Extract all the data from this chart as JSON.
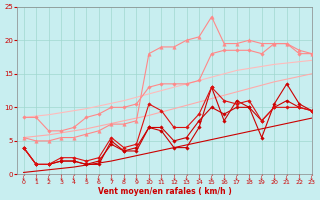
{
  "x": [
    0,
    1,
    2,
    3,
    4,
    5,
    6,
    7,
    8,
    9,
    10,
    11,
    12,
    13,
    14,
    15,
    16,
    17,
    18,
    19,
    20,
    21,
    22,
    23
  ],
  "series": [
    {
      "label": "line_smooth_lower_dark",
      "color": "#cc0000",
      "lw": 0.8,
      "marker": null,
      "ms": 0,
      "y": [
        0.3,
        0.5,
        0.7,
        0.9,
        1.1,
        1.4,
        1.7,
        2.0,
        2.4,
        2.8,
        3.2,
        3.6,
        4.0,
        4.4,
        4.8,
        5.2,
        5.6,
        6.0,
        6.4,
        6.8,
        7.2,
        7.6,
        8.0,
        8.4
      ]
    },
    {
      "label": "line_smooth_lower_pink",
      "color": "#ffaaaa",
      "lw": 0.8,
      "marker": null,
      "ms": 0,
      "y": [
        5.5,
        5.7,
        5.9,
        6.2,
        6.5,
        6.8,
        7.2,
        7.6,
        8.0,
        8.4,
        8.8,
        9.3,
        9.8,
        10.3,
        10.8,
        11.3,
        11.8,
        12.3,
        12.8,
        13.3,
        13.8,
        14.2,
        14.6,
        15.0
      ]
    },
    {
      "label": "line_smooth_upper_pink",
      "color": "#ffbbbb",
      "lw": 0.8,
      "marker": null,
      "ms": 0,
      "y": [
        8.5,
        8.7,
        8.9,
        9.2,
        9.5,
        9.8,
        10.2,
        10.6,
        11.0,
        11.5,
        12.0,
        12.5,
        13.0,
        13.5,
        14.0,
        14.5,
        15.0,
        15.5,
        15.8,
        16.1,
        16.4,
        16.6,
        16.8,
        17.0
      ]
    },
    {
      "label": "line_dark_markers1",
      "color": "#cc0000",
      "lw": 0.8,
      "marker": "D",
      "ms": 1.8,
      "y": [
        4,
        1.5,
        1.5,
        2.0,
        2.0,
        1.5,
        1.5,
        5.0,
        3.5,
        3.5,
        7.0,
        6.5,
        4.0,
        4.0,
        7.0,
        13.0,
        8.0,
        11.0,
        10.0,
        5.5,
        10.5,
        13.5,
        10.5,
        9.5
      ]
    },
    {
      "label": "line_dark_markers2",
      "color": "#cc0000",
      "lw": 0.8,
      "marker": "D",
      "ms": 1.8,
      "y": [
        4,
        1.5,
        1.5,
        2.0,
        2.0,
        1.5,
        2.0,
        4.5,
        3.5,
        4.0,
        7.0,
        7.0,
        5.0,
        5.5,
        8.0,
        10.0,
        9.0,
        10.0,
        10.0,
        8.0,
        10.0,
        11.0,
        10.0,
        9.5
      ]
    },
    {
      "label": "line_dark_markers3",
      "color": "#dd1111",
      "lw": 0.8,
      "marker": "D",
      "ms": 1.8,
      "y": [
        4,
        1.5,
        1.5,
        2.5,
        2.5,
        2.0,
        2.5,
        5.5,
        4.0,
        4.5,
        10.5,
        9.5,
        7.0,
        7.0,
        9.0,
        13.0,
        11.0,
        10.5,
        11.0,
        8.0,
        10.0,
        10.0,
        10.0,
        9.5
      ]
    },
    {
      "label": "line_pink_markers_lower",
      "color": "#ff8888",
      "lw": 0.8,
      "marker": "D",
      "ms": 1.8,
      "y": [
        8.5,
        8.5,
        6.5,
        6.5,
        7.0,
        8.5,
        9.0,
        10.0,
        10.0,
        10.5,
        13.0,
        13.5,
        13.5,
        13.5,
        14.0,
        18.0,
        18.5,
        18.5,
        18.5,
        18.0,
        19.5,
        19.5,
        18.0,
        18.0
      ]
    },
    {
      "label": "line_pink_markers_upper",
      "color": "#ff8888",
      "lw": 0.8,
      "marker": "^",
      "ms": 2.5,
      "y": [
        5.5,
        5.0,
        5.0,
        5.5,
        5.5,
        6.0,
        6.5,
        7.5,
        7.5,
        8.0,
        18.0,
        19.0,
        19.0,
        20.0,
        20.5,
        23.5,
        19.5,
        19.5,
        20.0,
        19.5,
        19.5,
        19.5,
        18.5,
        18.0
      ]
    }
  ],
  "xlabel": "Vent moyen/en rafales ( km/h )",
  "xlim": [
    -0.5,
    23
  ],
  "ylim": [
    0,
    25
  ],
  "yticks": [
    0,
    5,
    10,
    15,
    20,
    25
  ],
  "xticks": [
    0,
    1,
    2,
    3,
    4,
    5,
    6,
    7,
    8,
    9,
    10,
    11,
    12,
    13,
    14,
    15,
    16,
    17,
    18,
    19,
    20,
    21,
    22,
    23
  ],
  "bg_color": "#c8eef0",
  "grid_color": "#a0d8d0",
  "xlabel_color": "#cc0000",
  "tick_color": "#cc0000",
  "arrow_char": "↓"
}
